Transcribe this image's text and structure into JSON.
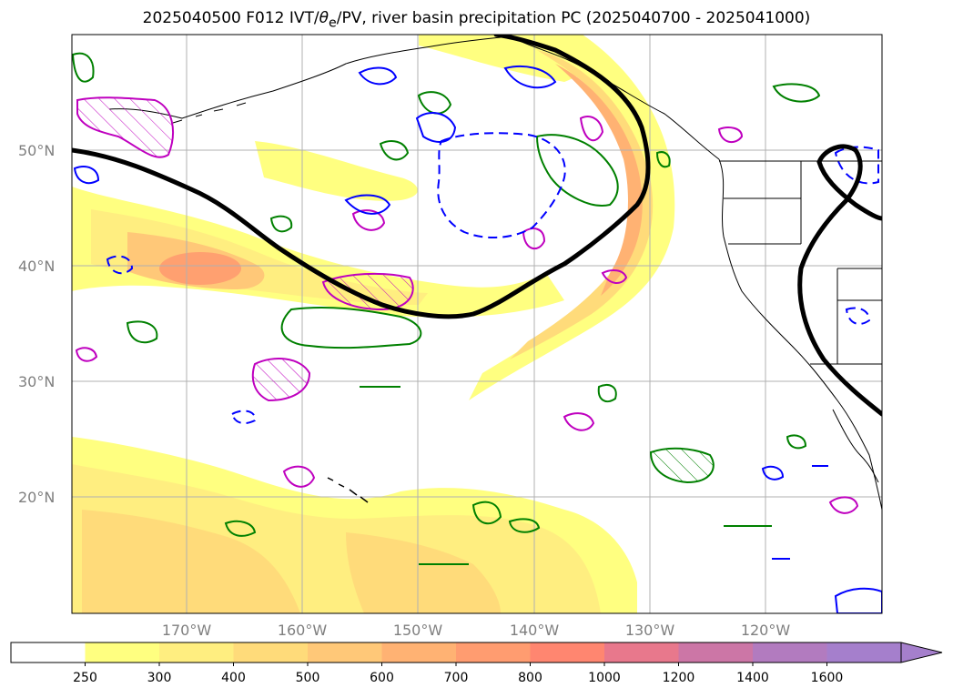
{
  "title": {
    "prefix": "2025040500 F012 IVT/",
    "theta_symbol": "θ",
    "theta_subscript": "e",
    "suffix": "/PV, river basin precipitation PC (2025040700 - 2025041000)"
  },
  "map": {
    "lat_labels": [
      "50°N",
      "40°N",
      "30°N",
      "20°N"
    ],
    "lon_labels": [
      "170°W",
      "160°W",
      "150°W",
      "140°W",
      "130°W",
      "120°W"
    ],
    "colors": {
      "pv_contour": "#000000",
      "theta_e_positive": "#008000",
      "theta_e_negative": "#0000ff",
      "precip_pc": "#bf00bf",
      "coastline": "#000000",
      "grid": "#b0b0b0"
    }
  },
  "colorbar": {
    "ticks": [
      "250",
      "300",
      "400",
      "500",
      "600",
      "700",
      "800",
      "1000",
      "1200",
      "1400",
      "1600"
    ],
    "colors": [
      "#ffffff",
      "#ffff80",
      "#ffee80",
      "#ffdb7a",
      "#ffc878",
      "#ffb273",
      "#ff9c70",
      "#ff8670",
      "#e8788c",
      "#cc76a6",
      "#b27bbf",
      "#a57fcc"
    ],
    "extend": "max"
  }
}
